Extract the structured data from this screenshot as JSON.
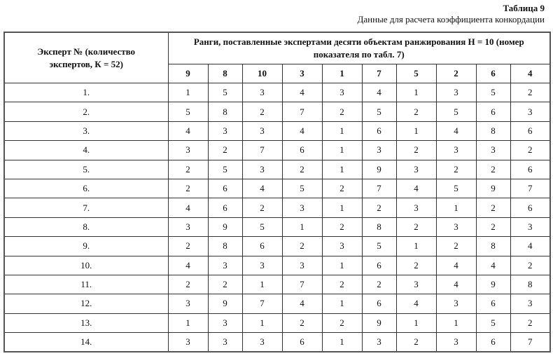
{
  "caption": {
    "number": "Таблица 9",
    "title": "Данные для расчета коэффициента конкордации"
  },
  "table": {
    "col1_header": "Эксперт № (количество экспертов, К = 52)",
    "group_header": "Ранги, поставленные экспертами десяти объектам ранжирования Н = 10 (номер показателя по табл. 7)",
    "columns": [
      "9",
      "8",
      "10",
      "3",
      "1",
      "7",
      "5",
      "2",
      "6",
      "4"
    ],
    "rows": [
      {
        "expert": "1.",
        "ranks": [
          "1",
          "5",
          "3",
          "4",
          "3",
          "4",
          "1",
          "3",
          "5",
          "2"
        ]
      },
      {
        "expert": "2.",
        "ranks": [
          "5",
          "8",
          "2",
          "7",
          "2",
          "5",
          "2",
          "5",
          "6",
          "3"
        ]
      },
      {
        "expert": "3.",
        "ranks": [
          "4",
          "3",
          "3",
          "4",
          "1",
          "6",
          "1",
          "4",
          "8",
          "6"
        ]
      },
      {
        "expert": "4.",
        "ranks": [
          "3",
          "2",
          "7",
          "6",
          "1",
          "3",
          "2",
          "3",
          "3",
          "2"
        ]
      },
      {
        "expert": "5.",
        "ranks": [
          "2",
          "5",
          "3",
          "2",
          "1",
          "9",
          "3",
          "2",
          "2",
          "6"
        ]
      },
      {
        "expert": "6.",
        "ranks": [
          "2",
          "6",
          "4",
          "5",
          "2",
          "7",
          "4",
          "5",
          "9",
          "7"
        ]
      },
      {
        "expert": "7.",
        "ranks": [
          "4",
          "6",
          "2",
          "3",
          "1",
          "2",
          "3",
          "1",
          "2",
          "6"
        ]
      },
      {
        "expert": "8.",
        "ranks": [
          "3",
          "9",
          "5",
          "1",
          "2",
          "8",
          "2",
          "3",
          "2",
          "3"
        ]
      },
      {
        "expert": "9.",
        "ranks": [
          "2",
          "8",
          "6",
          "2",
          "3",
          "5",
          "1",
          "2",
          "8",
          "4"
        ]
      },
      {
        "expert": "10.",
        "ranks": [
          "4",
          "3",
          "3",
          "3",
          "1",
          "6",
          "2",
          "4",
          "4",
          "2"
        ]
      },
      {
        "expert": "11.",
        "ranks": [
          "2",
          "2",
          "1",
          "7",
          "2",
          "2",
          "3",
          "4",
          "9",
          "8"
        ]
      },
      {
        "expert": "12.",
        "ranks": [
          "3",
          "9",
          "7",
          "4",
          "1",
          "6",
          "4",
          "3",
          "6",
          "3"
        ]
      },
      {
        "expert": "13.",
        "ranks": [
          "1",
          "3",
          "1",
          "2",
          "2",
          "9",
          "1",
          "1",
          "5",
          "2"
        ]
      },
      {
        "expert": "14.",
        "ranks": [
          "3",
          "3",
          "3",
          "6",
          "1",
          "3",
          "2",
          "3",
          "6",
          "7"
        ]
      }
    ]
  }
}
